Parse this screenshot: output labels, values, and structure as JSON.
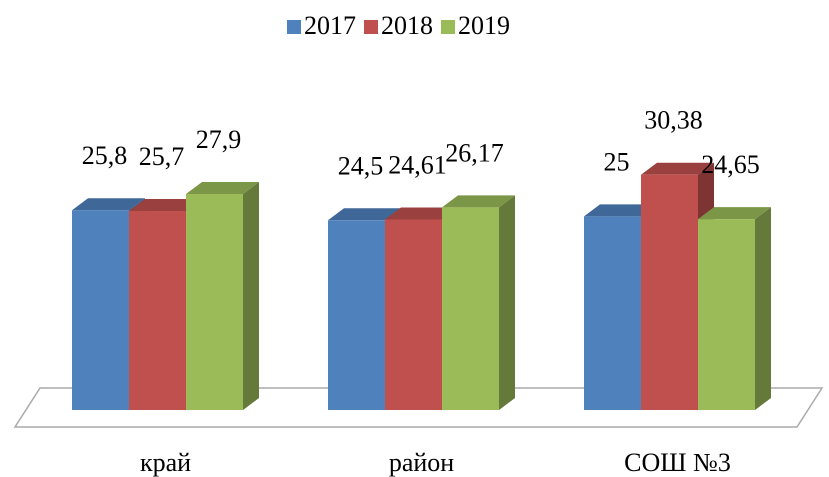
{
  "chart_data": {
    "type": "bar3d",
    "categories": [
      "край",
      "район",
      "СОШ №3"
    ],
    "series": [
      {
        "name": "2017",
        "color": "#4f81bd",
        "values": [
          25.8,
          24.5,
          25
        ],
        "value_labels": [
          "25,8",
          "24,5",
          "25"
        ]
      },
      {
        "name": "2018",
        "color": "#c0504d",
        "values": [
          25.7,
          24.61,
          30.38
        ],
        "value_labels": [
          "25,7",
          "24,61",
          "30,38"
        ]
      },
      {
        "name": "2019",
        "color": "#9bbb59",
        "values": [
          27.9,
          26.17,
          24.65
        ],
        "value_labels": [
          "27,9",
          "26,17",
          "24,65"
        ]
      }
    ],
    "ylim": [
      0,
      35
    ],
    "legend": "top"
  }
}
